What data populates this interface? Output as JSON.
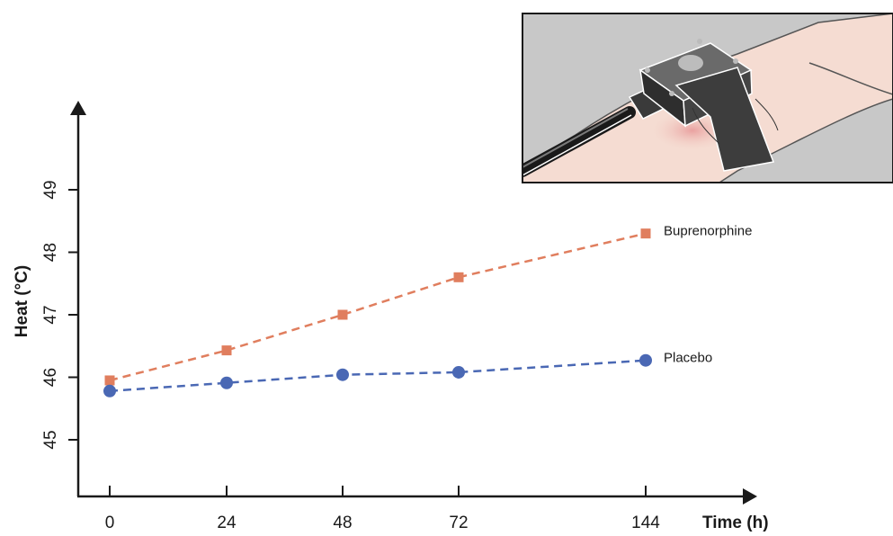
{
  "chart_data": {
    "type": "line",
    "x_categories": [
      "0",
      "24",
      "48",
      "72",
      "144"
    ],
    "xlabel": "Time (h)",
    "ylabel": "Heat (°C)",
    "y_ticks": [
      "45",
      "46",
      "47",
      "48",
      "49"
    ],
    "ylim": [
      44,
      50
    ],
    "grid": false,
    "series": [
      {
        "name": "Buprenorphine",
        "values": [
          45.95,
          46.43,
          47.0,
          47.6,
          48.3
        ],
        "color": "#e07e5e",
        "marker": "square",
        "line_style": "dashed"
      },
      {
        "name": "Placebo",
        "values": [
          45.78,
          45.91,
          46.04,
          46.08,
          46.27
        ],
        "color": "#4a68b4",
        "marker": "circle",
        "line_style": "dashed"
      }
    ]
  },
  "inset_illustration": {
    "description_icon": "thermode-on-arm-icon"
  }
}
